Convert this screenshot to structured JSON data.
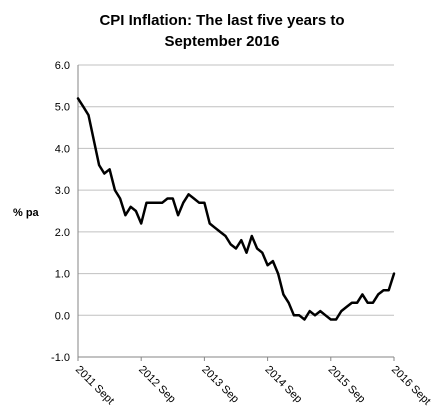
{
  "chart_data": {
    "type": "line",
    "title_lines": [
      "CPI Inflation: The last five years to",
      "September 2016"
    ],
    "ylabel": "% pa",
    "ylim": [
      -1.0,
      6.0
    ],
    "y_ticks": [
      "6.0",
      "5.0",
      "4.0",
      "3.0",
      "2.0",
      "1.0",
      "0.0",
      "-1.0"
    ],
    "y_tick_values": [
      6,
      5,
      4,
      3,
      2,
      1,
      0,
      -1
    ],
    "x_ticks": [
      "2011 Sept",
      "2012 Sep",
      "2013 Sep",
      "2014 Sep",
      "2015 Sep",
      "2016 Sept"
    ],
    "x_tick_months": [
      0,
      12,
      24,
      36,
      48,
      60
    ],
    "grid": true,
    "series": [
      {
        "values": [
          5.2,
          5.0,
          4.8,
          4.2,
          3.6,
          3.4,
          3.5,
          3.0,
          2.8,
          2.4,
          2.6,
          2.5,
          2.2,
          2.7,
          2.7,
          2.7,
          2.7,
          2.8,
          2.8,
          2.4,
          2.7,
          2.9,
          2.8,
          2.7,
          2.7,
          2.2,
          2.1,
          2.0,
          1.9,
          1.7,
          1.6,
          1.8,
          1.5,
          1.9,
          1.6,
          1.5,
          1.2,
          1.3,
          1.0,
          0.5,
          0.3,
          0.0,
          0.0,
          -0.1,
          0.1,
          0.0,
          0.1,
          0.0,
          -0.1,
          -0.1,
          0.1,
          0.2,
          0.3,
          0.3,
          0.5,
          0.3,
          0.3,
          0.5,
          0.6,
          0.6,
          1.0
        ]
      }
    ]
  }
}
